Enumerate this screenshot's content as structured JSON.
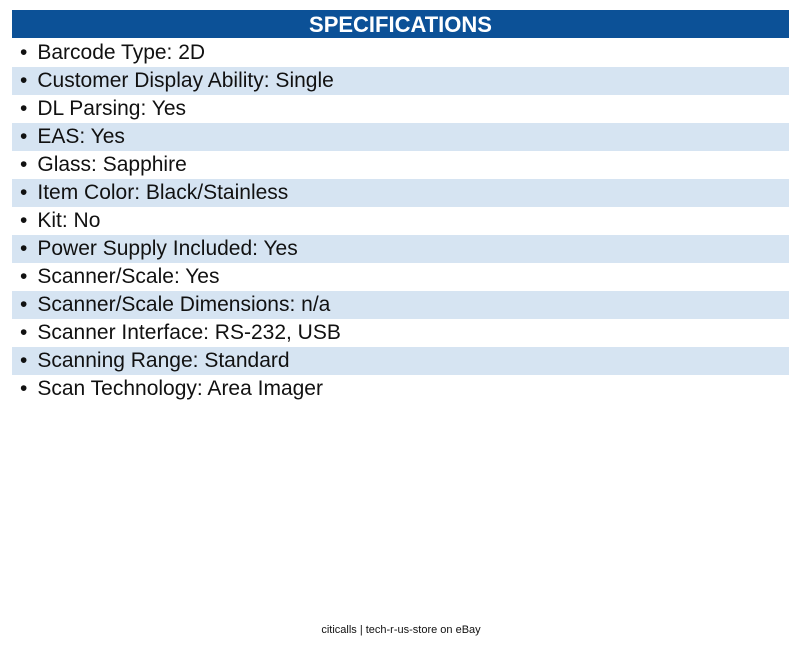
{
  "header": {
    "title": "SPECIFICATIONS"
  },
  "items": [
    "Barcode Type: 2D",
    "Customer Display Ability: Single",
    "DL Parsing: Yes",
    "EAS: Yes",
    "Glass: Sapphire",
    "Item Color: Black/Stainless",
    "Kit: No",
    "Power Supply Included: Yes",
    "Scanner/Scale: Yes",
    "Scanner/Scale Dimensions: n/a",
    "Scanner Interface: RS-232, USB",
    "Scanning Range: Standard",
    "Scan Technology: Area Imager"
  ],
  "footer": "citicalls | tech-r-us-store on eBay"
}
